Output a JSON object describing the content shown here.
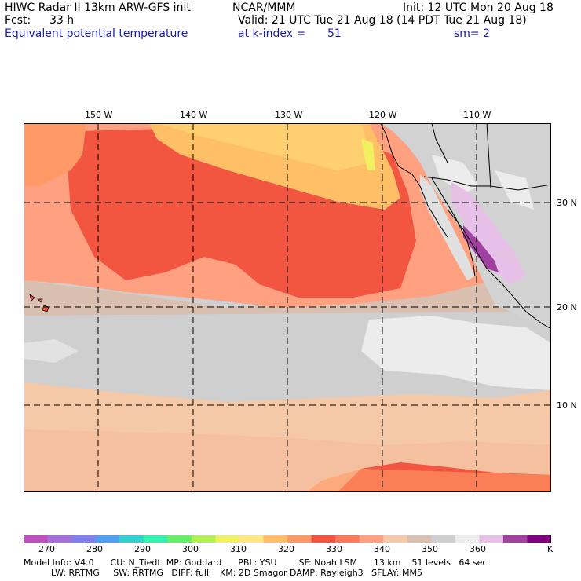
{
  "header": {
    "line1_left": "HIWC Radar II 13km ARW-GFS init",
    "line1_mid": "NCAR/MMM",
    "line1_right": "Init: 12 UTC Mon 20 Aug 18",
    "line2_left": "Fcst:",
    "line2_fcst": "33 h",
    "line2_right": "Valid: 21 UTC Tue 21 Aug 18 (14 PDT Tue 21 Aug 18)",
    "line3_field": "Equivalent potential temperature",
    "line3_level": "at k-index =",
    "line3_k": "51",
    "line3_sm": "sm= 2"
  },
  "map": {
    "lon_labels": [
      "150 W",
      "140 W",
      "130 W",
      "120 W",
      "110 W"
    ],
    "lat_labels": [
      "30 N",
      "20 N",
      "10 N"
    ],
    "gridlines": "dashed"
  },
  "colorbar": {
    "colors": [
      "#c04fc0",
      "#a66fd9",
      "#8080f0",
      "#4fa0f0",
      "#33d0d0",
      "#33f0b0",
      "#66f066",
      "#b0f050",
      "#f0f060",
      "#ffe680",
      "#ffbf66",
      "#ff9966",
      "#f25540",
      "#ff7a5a",
      "#ffa080",
      "#f5c8a8",
      "#d9bfb0",
      "#cfcfcf",
      "#ececec",
      "#e6c0e6",
      "#a040a0",
      "#800080"
    ],
    "tick_labels": [
      "270",
      "280",
      "290",
      "300",
      "310",
      "320",
      "330",
      "340",
      "350",
      "360",
      "K"
    ]
  },
  "footer": {
    "line1": "Model Info: V4.0      CU: N_Tiedt  MP: Goddard      PBL: YSU        SF: Noah LSM      13 km    51 levels   64 sec",
    "line2": "          LW: RRTMG     SW: RRTMG   DIFF: full    KM: 2D Smagor DAMP: Rayleigh3   SFLAY: MM5"
  }
}
